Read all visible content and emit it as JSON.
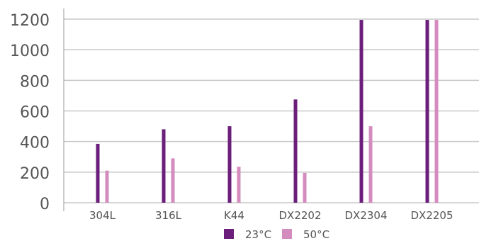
{
  "chart_data": {
    "type": "bar",
    "title": "",
    "xlabel": "",
    "ylabel": "",
    "categories": [
      "304L",
      "316L",
      "K44",
      "DX2202",
      "DX2304",
      "DX2205"
    ],
    "series": [
      {
        "name": "23°C",
        "color": "#6b1f7b",
        "values": [
          385,
          480,
          500,
          675,
          1195,
          1195
        ]
      },
      {
        "name": "50°C",
        "color": "#d48cbf",
        "values": [
          210,
          290,
          235,
          195,
          500,
          1195
        ]
      }
    ],
    "ylim": [
      0,
      1200
    ],
    "yticks": [
      0,
      200,
      400,
      600,
      800,
      1000,
      1200
    ],
    "grid": true,
    "legend_position": "bottom"
  }
}
